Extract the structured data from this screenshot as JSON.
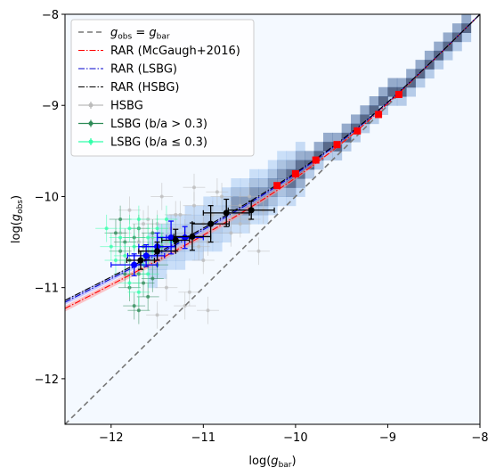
{
  "chart_data": {
    "type": "scatter",
    "xlabel": "log(g_bar)",
    "ylabel": "log(g_obs)",
    "xlim": [
      -12.5,
      -8
    ],
    "ylim": [
      -12.5,
      -8
    ],
    "x_ticks": [
      -12,
      -11,
      -10,
      -9,
      -8
    ],
    "y_ticks": [
      -12,
      -11,
      -10,
      -9,
      -8
    ],
    "legend_position": "upper-left",
    "legend": [
      {
        "label": "g_obs = g_bar",
        "style": "dashed",
        "color": "#777777"
      },
      {
        "label": "RAR (McGaugh+2016)",
        "style": "dashdot",
        "color": "#ff0000"
      },
      {
        "label": "RAR (LSBG)",
        "style": "dashdot",
        "color": "#0000cc"
      },
      {
        "label": "RAR (HSBG)",
        "style": "dashdot",
        "color": "#000000"
      },
      {
        "label": "HSBG",
        "style": "errorbar",
        "color": "#bbbbbb"
      },
      {
        "label": "LSBG (b/a > 0.3)",
        "style": "errorbar",
        "color": "#2e8b57"
      },
      {
        "label": "LSBG (b/a ≤ 0.3)",
        "style": "errorbar",
        "color": "#33ffaa"
      }
    ],
    "legend_math": {
      "g": "g",
      "obs": "obs",
      "bar": "bar",
      "eq": " = "
    },
    "axis_text": {
      "xlabel_pre": "log(",
      "xlabel_sym": "g",
      "xlabel_sub": "bar",
      "xlabel_post": ")",
      "ylabel_pre": "log(",
      "ylabel_sym": "g",
      "ylabel_sub": "obs",
      "ylabel_post": ")"
    },
    "tick_labels": [
      "−12",
      "−11",
      "−10",
      "−9",
      "−8"
    ],
    "series": [
      {
        "name": "HSBG",
        "color": "#bbbbbb",
        "points": [
          {
            "x": -11.9,
            "y": -10.4
          },
          {
            "x": -11.7,
            "y": -10.5
          },
          {
            "x": -11.6,
            "y": -10.6
          },
          {
            "x": -11.5,
            "y": -10.3
          },
          {
            "x": -11.4,
            "y": -10.5
          },
          {
            "x": -11.3,
            "y": -10.2
          },
          {
            "x": -11.2,
            "y": -10.4
          },
          {
            "x": -11.1,
            "y": -10.1
          },
          {
            "x": -11.0,
            "y": -10.3
          },
          {
            "x": -10.95,
            "y": -10.5
          },
          {
            "x": -10.9,
            "y": -10.2
          },
          {
            "x": -10.8,
            "y": -10.0
          },
          {
            "x": -10.7,
            "y": -10.2
          },
          {
            "x": -10.6,
            "y": -10.1
          },
          {
            "x": -10.5,
            "y": -10.0
          },
          {
            "x": -10.4,
            "y": -10.6
          },
          {
            "x": -11.1,
            "y": -9.9
          },
          {
            "x": -10.85,
            "y": -9.95
          },
          {
            "x": -11.25,
            "y": -10.2
          },
          {
            "x": -11.45,
            "y": -10.0
          },
          {
            "x": -11.6,
            "y": -10.25
          },
          {
            "x": -11.0,
            "y": -10.7
          },
          {
            "x": -11.2,
            "y": -11.2
          },
          {
            "x": -11.4,
            "y": -11.0
          },
          {
            "x": -11.15,
            "y": -11.05
          },
          {
            "x": -10.95,
            "y": -11.25
          },
          {
            "x": -11.5,
            "y": -11.3
          },
          {
            "x": -11.8,
            "y": -10.15
          },
          {
            "x": -10.7,
            "y": -10.4
          },
          {
            "x": -10.6,
            "y": -10.3
          },
          {
            "x": -10.5,
            "y": -10.25
          },
          {
            "x": -10.35,
            "y": -10.15
          },
          {
            "x": -11.35,
            "y": -10.35
          },
          {
            "x": -11.05,
            "y": -10.55
          },
          {
            "x": -11.55,
            "y": -10.45
          },
          {
            "x": -11.65,
            "y": -10.3
          }
        ]
      },
      {
        "name": "LSBG (b/a > 0.3)",
        "color": "#2e8b57",
        "points": [
          {
            "x": -11.9,
            "y": -10.6
          },
          {
            "x": -11.85,
            "y": -10.5
          },
          {
            "x": -11.8,
            "y": -10.7
          },
          {
            "x": -11.75,
            "y": -10.45
          },
          {
            "x": -11.7,
            "y": -10.85
          },
          {
            "x": -11.65,
            "y": -10.55
          },
          {
            "x": -11.6,
            "y": -10.65
          },
          {
            "x": -11.55,
            "y": -10.4
          },
          {
            "x": -11.8,
            "y": -11.0
          },
          {
            "x": -11.75,
            "y": -11.2
          },
          {
            "x": -11.7,
            "y": -11.25
          },
          {
            "x": -11.95,
            "y": -10.4
          },
          {
            "x": -11.5,
            "y": -10.75
          },
          {
            "x": -11.65,
            "y": -10.95
          },
          {
            "x": -11.85,
            "y": -10.85
          },
          {
            "x": -11.45,
            "y": -10.55
          },
          {
            "x": -11.6,
            "y": -11.1
          },
          {
            "x": -11.9,
            "y": -10.25
          },
          {
            "x": -11.7,
            "y": -10.35
          },
          {
            "x": -11.55,
            "y": -10.9
          }
        ]
      },
      {
        "name": "LSBG (b/a ≤ 0.3)",
        "color": "#33ffaa",
        "points": [
          {
            "x": -12.0,
            "y": -10.55
          },
          {
            "x": -11.95,
            "y": -10.7
          },
          {
            "x": -11.9,
            "y": -10.45
          },
          {
            "x": -11.85,
            "y": -10.65
          },
          {
            "x": -11.8,
            "y": -10.35
          },
          {
            "x": -11.75,
            "y": -10.55
          },
          {
            "x": -11.7,
            "y": -10.25
          },
          {
            "x": -11.65,
            "y": -10.75
          },
          {
            "x": -11.6,
            "y": -10.45
          },
          {
            "x": -11.55,
            "y": -10.6
          },
          {
            "x": -11.5,
            "y": -10.35
          },
          {
            "x": -11.45,
            "y": -10.45
          },
          {
            "x": -11.8,
            "y": -10.95
          },
          {
            "x": -11.7,
            "y": -11.05
          },
          {
            "x": -11.6,
            "y": -10.85
          },
          {
            "x": -12.05,
            "y": -10.35
          },
          {
            "x": -11.4,
            "y": -10.25
          },
          {
            "x": -11.35,
            "y": -10.5
          }
        ]
      },
      {
        "name": "LSBG binned",
        "color": "#0000ff",
        "points": [
          {
            "x": -11.75,
            "y": -10.75,
            "xerr": 0.25,
            "yerr": 0.12
          },
          {
            "x": -11.62,
            "y": -10.65,
            "xerr": 0.2,
            "yerr": 0.12
          },
          {
            "x": -11.5,
            "y": -10.55,
            "xerr": 0.2,
            "yerr": 0.15
          },
          {
            "x": -11.35,
            "y": -10.45,
            "xerr": 0.15,
            "yerr": 0.18
          },
          {
            "x": -11.2,
            "y": -10.45,
            "xerr": 0.2,
            "yerr": 0.12
          }
        ]
      },
      {
        "name": "HSBG binned",
        "color": "#000000",
        "points": [
          {
            "x": -11.68,
            "y": -10.7,
            "xerr": 0.15,
            "yerr": 0.1
          },
          {
            "x": -11.5,
            "y": -10.6,
            "xerr": 0.2,
            "yerr": 0.1
          },
          {
            "x": -11.3,
            "y": -10.48,
            "xerr": 0.15,
            "yerr": 0.12
          },
          {
            "x": -11.12,
            "y": -10.44,
            "xerr": 0.2,
            "yerr": 0.15
          },
          {
            "x": -10.92,
            "y": -10.3,
            "xerr": 0.2,
            "yerr": 0.2
          },
          {
            "x": -10.75,
            "y": -10.18,
            "xerr": 0.25,
            "yerr": 0.15
          },
          {
            "x": -10.48,
            "y": -10.15,
            "xerr": 0.25,
            "yerr": 0.1
          }
        ]
      },
      {
        "name": "McGaugh bins",
        "color": "#ff0000",
        "points": [
          {
            "x": -10.2,
            "y": -9.88
          },
          {
            "x": -10.0,
            "y": -9.75
          },
          {
            "x": -9.78,
            "y": -9.6
          },
          {
            "x": -9.55,
            "y": -9.43
          },
          {
            "x": -9.33,
            "y": -9.28
          },
          {
            "x": -9.1,
            "y": -9.1
          },
          {
            "x": -8.88,
            "y": -8.88
          }
        ]
      }
    ]
  }
}
